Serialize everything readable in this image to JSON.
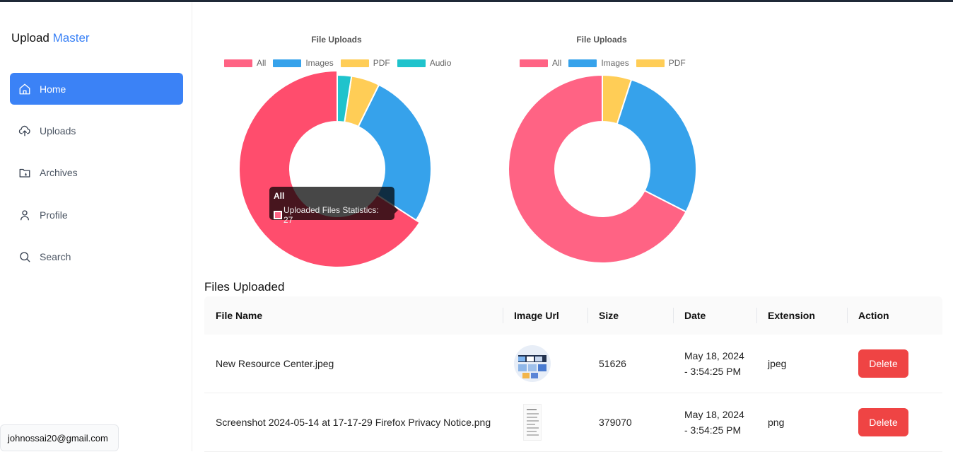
{
  "app": {
    "brand_main": "Upload",
    "brand_accent": "Master"
  },
  "sidebar": {
    "items": [
      {
        "label": "Home",
        "icon": "home-icon",
        "active": true
      },
      {
        "label": "Uploads",
        "icon": "cloud-upload-icon",
        "active": false
      },
      {
        "label": "Archives",
        "icon": "folder-icon",
        "active": false
      },
      {
        "label": "Profile",
        "icon": "user-icon",
        "active": false
      },
      {
        "label": "Search",
        "icon": "search-icon",
        "active": false
      }
    ],
    "user_email": "johnossai20@gmail.com"
  },
  "colors": {
    "accent": "#3b82f6",
    "all": "#ff6384",
    "images": "#36a2eb",
    "pdf": "#ffcd56",
    "audio": "#1fc3cc",
    "delete": "#ef4444"
  },
  "chart_data": [
    {
      "type": "pie",
      "title": "File Uploads",
      "categories": [
        "All",
        "Images",
        "PDF",
        "Audio"
      ],
      "values": [
        27,
        11,
        2,
        1
      ],
      "colors": [
        "#ff4d6d",
        "#36a2eb",
        "#ffcd56",
        "#1fc3cc"
      ],
      "legend": "top"
    },
    {
      "type": "pie",
      "title": "File Uploads",
      "categories": [
        "All",
        "Images",
        "PDF"
      ],
      "values": [
        27,
        11,
        2
      ],
      "colors": [
        "#ff6384",
        "#36a2eb",
        "#ffcd56"
      ],
      "legend": "top"
    }
  ],
  "tooltip": {
    "title": "All",
    "body": "Uploaded Files Statistics: 27"
  },
  "files": {
    "title": "Files Uploaded",
    "columns": [
      "File Name",
      "Image Url",
      "Size",
      "Date",
      "Extension",
      "Action"
    ],
    "rows": [
      {
        "name": "New Resource Center.jpeg",
        "size": "51626",
        "date_line1": "May 18, 2024",
        "date_line2": "- 3:54:25 PM",
        "extension": "jpeg",
        "action": "Delete"
      },
      {
        "name": "Screenshot 2024-05-14 at 17-17-29 Firefox Privacy Notice.png",
        "size": "379070",
        "date_line1": "May 18, 2024",
        "date_line2": "- 3:54:25 PM",
        "extension": "png",
        "action": "Delete"
      }
    ]
  }
}
